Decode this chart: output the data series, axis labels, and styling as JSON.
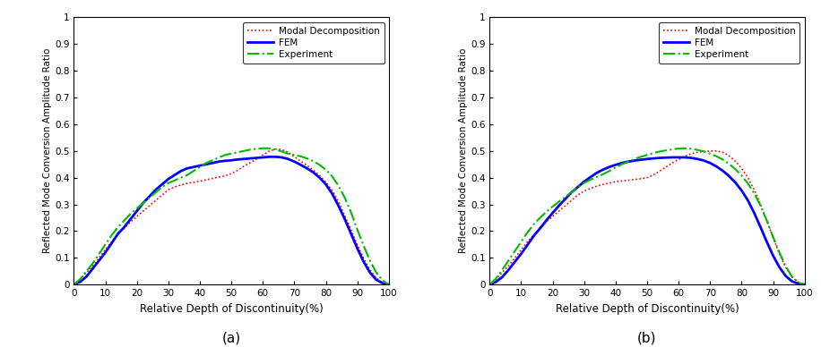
{
  "ylabel": "Reflected Mode Conversion Amplitude Ratio",
  "xlabel": "Relative Depth of Discontinuity(%)",
  "xlim": [
    0,
    100
  ],
  "ylim": [
    0,
    1
  ],
  "yticks": [
    0,
    0.1,
    0.2,
    0.3,
    0.4,
    0.5,
    0.6,
    0.7,
    0.8,
    0.9,
    1
  ],
  "ytick_labels": [
    "0",
    "0.1",
    "0.2",
    "0.3",
    "0.4",
    "0.5",
    "0.6",
    "0.7",
    "0.8",
    "0.9",
    "1"
  ],
  "xticks": [
    0,
    10,
    20,
    30,
    40,
    50,
    60,
    70,
    80,
    90,
    100
  ],
  "label_a": "(a)",
  "label_b": "(b)",
  "legend_modal": "Modal Decomposition",
  "legend_fem": "FEM",
  "legend_experiment": "Experiment",
  "modal_color": "#ff0000",
  "fem_color": "#0000ff",
  "experiment_color": "#00bb00",
  "background_color": "#ffffff",
  "x": [
    0,
    2,
    4,
    6,
    8,
    10,
    12,
    14,
    16,
    18,
    20,
    22,
    24,
    26,
    28,
    30,
    32,
    34,
    36,
    38,
    40,
    42,
    44,
    46,
    48,
    50,
    52,
    54,
    56,
    58,
    60,
    62,
    64,
    66,
    68,
    70,
    72,
    74,
    76,
    78,
    80,
    82,
    84,
    86,
    88,
    90,
    92,
    94,
    96,
    98,
    100
  ],
  "a_modal": [
    0.0,
    0.02,
    0.045,
    0.07,
    0.1,
    0.13,
    0.16,
    0.19,
    0.21,
    0.235,
    0.255,
    0.275,
    0.295,
    0.315,
    0.335,
    0.355,
    0.365,
    0.373,
    0.379,
    0.383,
    0.387,
    0.392,
    0.397,
    0.402,
    0.407,
    0.415,
    0.428,
    0.443,
    0.456,
    0.47,
    0.485,
    0.499,
    0.507,
    0.505,
    0.495,
    0.478,
    0.462,
    0.446,
    0.428,
    0.408,
    0.383,
    0.352,
    0.31,
    0.258,
    0.205,
    0.148,
    0.098,
    0.055,
    0.024,
    0.008,
    0.0
  ],
  "a_fem": [
    0.0,
    0.01,
    0.03,
    0.06,
    0.09,
    0.12,
    0.155,
    0.19,
    0.215,
    0.245,
    0.275,
    0.305,
    0.33,
    0.355,
    0.375,
    0.395,
    0.41,
    0.425,
    0.435,
    0.44,
    0.445,
    0.45,
    0.455,
    0.46,
    0.463,
    0.465,
    0.468,
    0.47,
    0.472,
    0.474,
    0.476,
    0.478,
    0.478,
    0.476,
    0.47,
    0.46,
    0.448,
    0.435,
    0.42,
    0.4,
    0.375,
    0.34,
    0.295,
    0.245,
    0.19,
    0.135,
    0.085,
    0.045,
    0.018,
    0.005,
    0.0
  ],
  "a_experiment": [
    0.0,
    0.02,
    0.05,
    0.08,
    0.115,
    0.15,
    0.185,
    0.215,
    0.24,
    0.265,
    0.285,
    0.305,
    0.325,
    0.345,
    0.365,
    0.38,
    0.39,
    0.4,
    0.41,
    0.425,
    0.44,
    0.455,
    0.465,
    0.475,
    0.485,
    0.49,
    0.495,
    0.5,
    0.505,
    0.508,
    0.51,
    0.51,
    0.505,
    0.498,
    0.49,
    0.485,
    0.48,
    0.472,
    0.462,
    0.448,
    0.43,
    0.405,
    0.37,
    0.325,
    0.27,
    0.205,
    0.145,
    0.09,
    0.045,
    0.015,
    0.0
  ],
  "b_modal": [
    0.0,
    0.02,
    0.045,
    0.07,
    0.1,
    0.13,
    0.16,
    0.185,
    0.21,
    0.235,
    0.255,
    0.275,
    0.295,
    0.315,
    0.335,
    0.35,
    0.36,
    0.368,
    0.375,
    0.38,
    0.385,
    0.388,
    0.39,
    0.393,
    0.396,
    0.4,
    0.41,
    0.425,
    0.44,
    0.455,
    0.468,
    0.48,
    0.49,
    0.495,
    0.498,
    0.5,
    0.5,
    0.495,
    0.482,
    0.462,
    0.435,
    0.4,
    0.355,
    0.3,
    0.24,
    0.175,
    0.115,
    0.065,
    0.028,
    0.008,
    0.0
  ],
  "b_fem": [
    0.0,
    0.01,
    0.028,
    0.055,
    0.085,
    0.115,
    0.148,
    0.182,
    0.21,
    0.24,
    0.268,
    0.295,
    0.32,
    0.345,
    0.365,
    0.385,
    0.402,
    0.418,
    0.43,
    0.44,
    0.448,
    0.455,
    0.46,
    0.464,
    0.467,
    0.47,
    0.472,
    0.474,
    0.475,
    0.476,
    0.476,
    0.476,
    0.474,
    0.47,
    0.464,
    0.455,
    0.442,
    0.426,
    0.406,
    0.382,
    0.352,
    0.315,
    0.268,
    0.215,
    0.16,
    0.108,
    0.065,
    0.032,
    0.012,
    0.003,
    0.0
  ],
  "b_experiment": [
    0.0,
    0.022,
    0.055,
    0.09,
    0.125,
    0.16,
    0.195,
    0.225,
    0.25,
    0.272,
    0.292,
    0.31,
    0.328,
    0.346,
    0.364,
    0.38,
    0.392,
    0.403,
    0.413,
    0.425,
    0.438,
    0.45,
    0.46,
    0.47,
    0.478,
    0.485,
    0.492,
    0.498,
    0.502,
    0.506,
    0.509,
    0.51,
    0.508,
    0.504,
    0.498,
    0.49,
    0.48,
    0.468,
    0.452,
    0.432,
    0.408,
    0.378,
    0.342,
    0.295,
    0.24,
    0.178,
    0.12,
    0.068,
    0.03,
    0.008,
    0.0
  ]
}
